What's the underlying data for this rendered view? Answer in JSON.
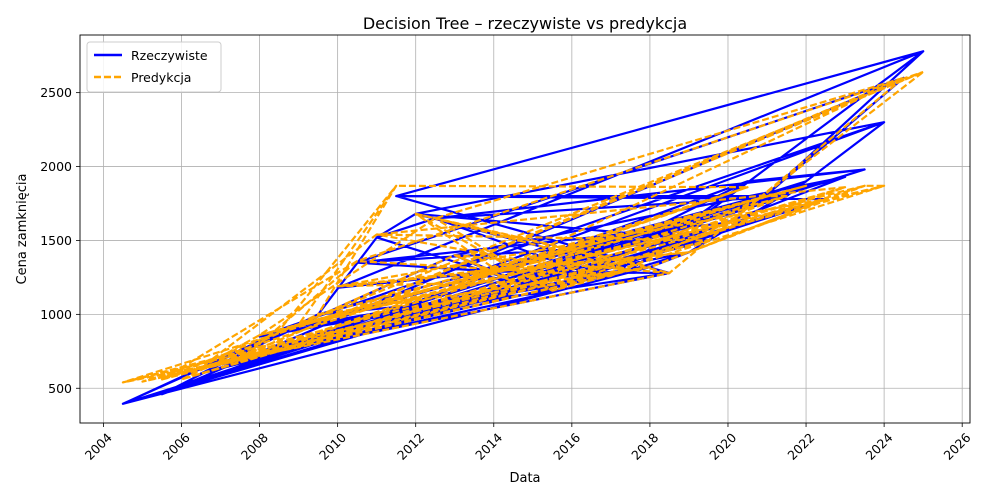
{
  "chart_data": {
    "type": "line",
    "title": "Decision Tree – rzeczywiste vs predykcja",
    "xlabel": "Data",
    "ylabel": "Cena zamknięcia",
    "xlim": [
      2003.4,
      2026.2
    ],
    "ylim": [
      265,
      2890
    ],
    "x_ticks": [
      "2004",
      "2006",
      "2008",
      "2010",
      "2012",
      "2014",
      "2016",
      "2018",
      "2020",
      "2022",
      "2024",
      "2026"
    ],
    "y_ticks": [
      "500",
      "1000",
      "1500",
      "2000",
      "2500"
    ],
    "grid": true,
    "legend_position": "top-left",
    "colors": {
      "actual": "#0000ff",
      "predicted": "#ffa500"
    },
    "series": [
      {
        "name": "Rzeczywiste",
        "style": "solid",
        "x": [
          2004.5,
          2005.0,
          2005.5,
          2006.0,
          2006.5,
          2007.0,
          2007.5,
          2008.0,
          2008.5,
          2009.0,
          2009.5,
          2010.0,
          2010.5,
          2011.0,
          2011.5,
          2012.0,
          2012.5,
          2013.0,
          2013.5,
          2014.0,
          2014.5,
          2015.0,
          2015.5,
          2016.0,
          2016.5,
          2017.0,
          2017.5,
          2018.0,
          2018.5,
          2019.0,
          2019.5,
          2020.0,
          2020.5,
          2021.0,
          2021.5,
          2022.0,
          2022.5,
          2023.0,
          2023.5,
          2024.0,
          2024.5,
          2025.0
        ],
        "values": [
          395,
          430,
          460,
          520,
          600,
          660,
          700,
          850,
          880,
          920,
          1000,
          1180,
          1350,
          1520,
          1800,
          1680,
          1650,
          1400,
          1280,
          1290,
          1220,
          1180,
          1150,
          1250,
          1270,
          1260,
          1300,
          1320,
          1280,
          1420,
          1500,
          1620,
          1900,
          1810,
          1800,
          1900,
          1780,
          1930,
          1980,
          2300,
          2600,
          2780
        ]
      },
      {
        "name": "Predykcja",
        "style": "dashed",
        "x": [
          2004.5,
          2005.0,
          2005.5,
          2006.0,
          2006.5,
          2007.0,
          2007.5,
          2008.0,
          2008.5,
          2009.0,
          2009.5,
          2010.0,
          2010.5,
          2011.0,
          2011.5,
          2012.0,
          2012.5,
          2013.0,
          2013.5,
          2014.0,
          2014.5,
          2015.0,
          2015.5,
          2016.0,
          2016.5,
          2017.0,
          2017.5,
          2018.0,
          2018.5,
          2019.0,
          2019.5,
          2020.0,
          2020.5,
          2021.0,
          2021.5,
          2022.0,
          2022.5,
          2023.0,
          2023.5,
          2024.0,
          2024.5,
          2025.0
        ],
        "values": [
          540,
          545,
          560,
          560,
          640,
          660,
          690,
          860,
          890,
          930,
          1000,
          1190,
          1360,
          1540,
          1870,
          1680,
          1650,
          1400,
          1290,
          1290,
          1220,
          1180,
          1160,
          1250,
          1270,
          1260,
          1300,
          1320,
          1280,
          1420,
          1500,
          1620,
          1860,
          1800,
          1800,
          1870,
          1780,
          1860,
          1870,
          1870,
          2600,
          2640
        ]
      }
    ]
  }
}
